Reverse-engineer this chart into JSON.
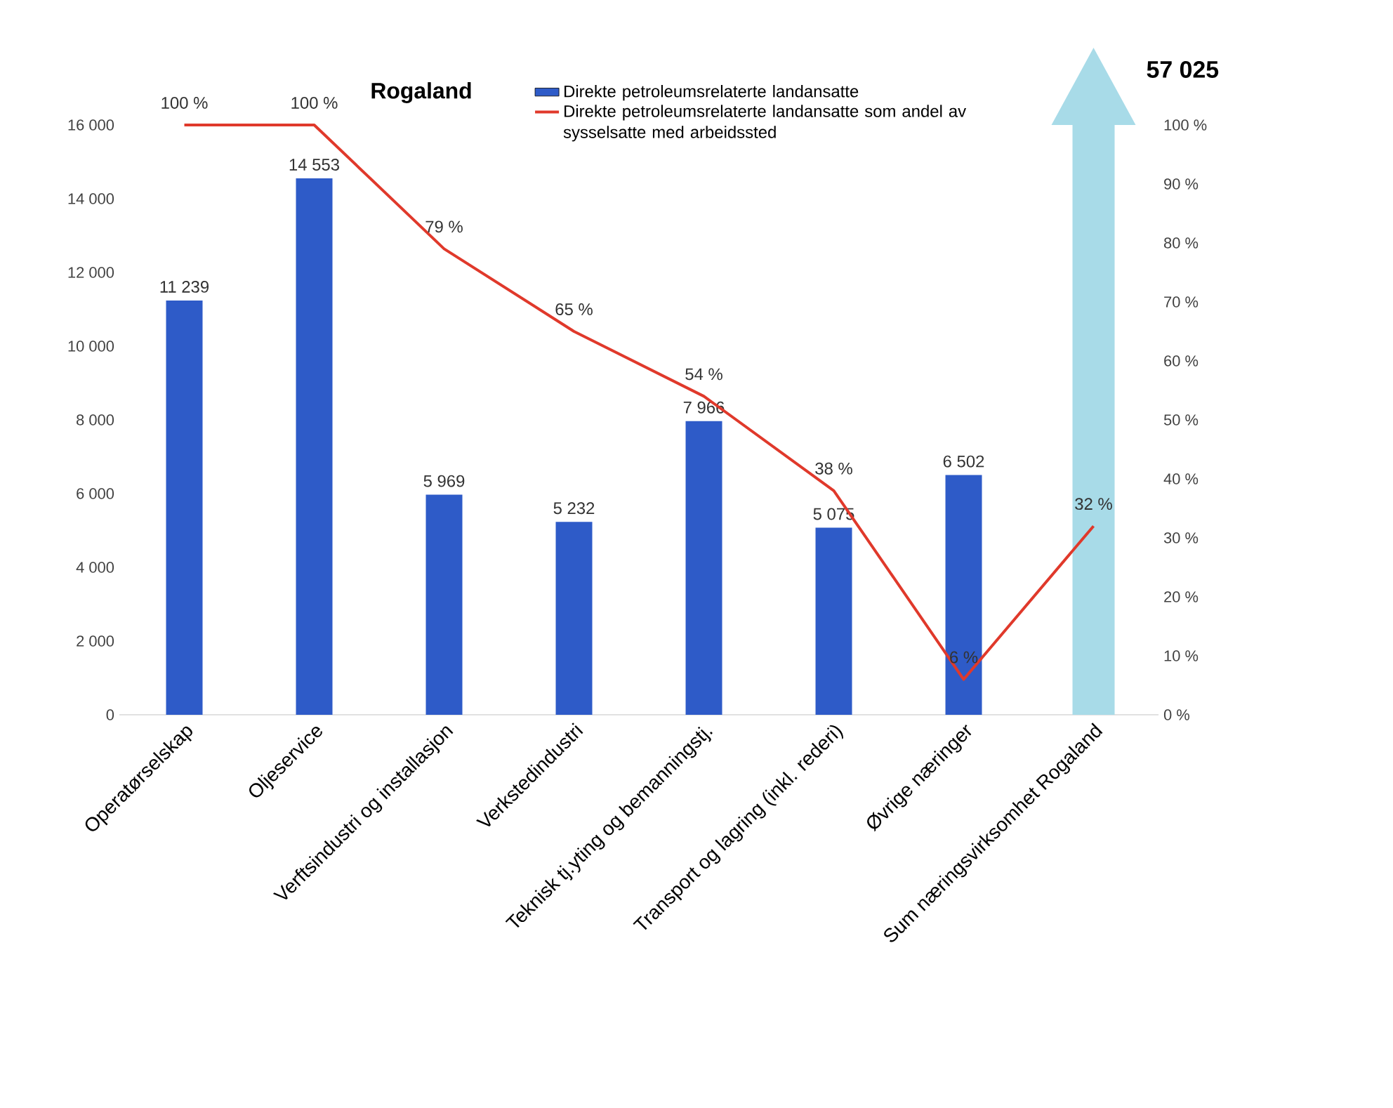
{
  "chart_data": {
    "type": "bar",
    "title": "Rogaland",
    "categories": [
      "Operatørselskap",
      "Oljeservice",
      "Verftsindustri og installasjon",
      "Verkstedindustri",
      "Teknisk tj.yting og bemanningstj.",
      "Transport og lagring (inkl. rederi)",
      "Øvrige næringer",
      "Sum næringsvirksomhet Rogaland"
    ],
    "series": [
      {
        "name": "Direkte petroleumsrelaterte landansatte",
        "color": "#2e5bc8",
        "values": [
          11239,
          14553,
          5969,
          5232,
          7966,
          5075,
          6502,
          null
        ],
        "value_labels": [
          "11 239",
          "14 553",
          "5 969",
          "5 232",
          "7 966",
          "5 075",
          "6 502",
          null
        ]
      },
      {
        "name": "Direkte petroleumsrelaterte landansatte som andel av sysselsatte med arbeidssted",
        "type": "line",
        "axis": "y2",
        "color": "#e0392b",
        "values": [
          100,
          100,
          79,
          65,
          54,
          38,
          6,
          32
        ],
        "value_labels": [
          "100 %",
          "100 %",
          "79 %",
          "65 %",
          "54 %",
          "38 %",
          "6 %",
          "32 %"
        ]
      }
    ],
    "ylim": [
      0,
      16000
    ],
    "yticks": [
      0,
      {
        "value": 2000,
        "label": "2 000"
      },
      {
        "value": 4000,
        "label": "4 000"
      },
      {
        "value": 6000,
        "label": "6 000"
      },
      {
        "value": 8000,
        "label": "8 000"
      },
      {
        "value": 10000,
        "label": "10 000"
      },
      {
        "value": 12000,
        "label": "12 000"
      },
      {
        "value": 14000,
        "label": "14 000"
      },
      {
        "value": 16000,
        "label": "16 000"
      }
    ],
    "y2lim": [
      0,
      100
    ],
    "y2ticks": [
      {
        "value": 0,
        "label": "0 %"
      },
      {
        "value": 10,
        "label": "10 %"
      },
      {
        "value": 20,
        "label": "20 %"
      },
      {
        "value": 30,
        "label": "30 %"
      },
      {
        "value": 40,
        "label": "40 %"
      },
      {
        "value": 50,
        "label": "50 %"
      },
      {
        "value": 60,
        "label": "60 %"
      },
      {
        "value": 70,
        "label": "70 %"
      },
      {
        "value": 80,
        "label": "80 %"
      },
      {
        "value": 90,
        "label": "90 %"
      },
      {
        "value": 100,
        "label": "100 %"
      }
    ],
    "annotations": [
      "**57 025**"
    ],
    "legend": "top right",
    "grid": false,
    "marker": "none"
  }
}
